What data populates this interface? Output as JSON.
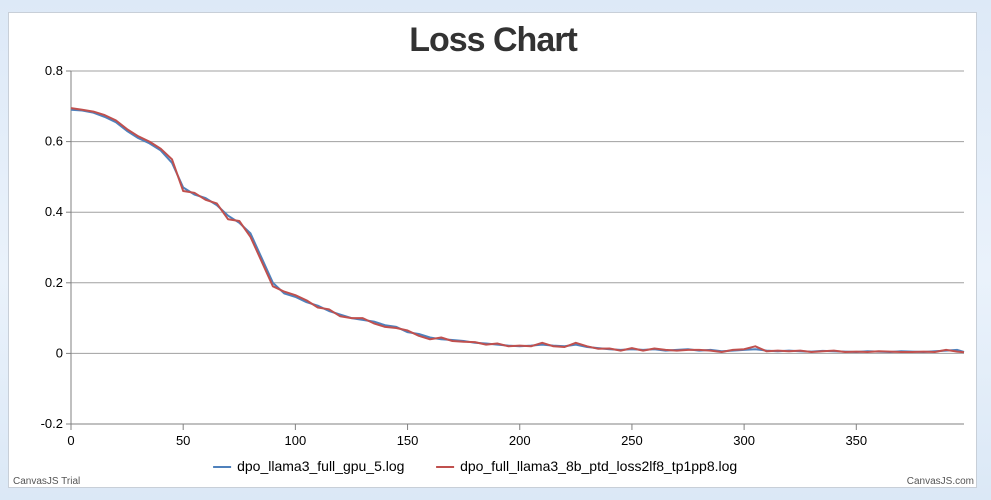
{
  "chart_data": {
    "type": "line",
    "title": "Loss Chart",
    "xlabel": "",
    "ylabel": "",
    "xlim": [
      0,
      398
    ],
    "ylim": [
      -0.2,
      0.8
    ],
    "x_ticks": [
      0,
      50,
      100,
      150,
      200,
      250,
      300,
      350
    ],
    "y_ticks": [
      -0.2,
      0,
      0.2,
      0.4,
      0.6,
      0.8
    ],
    "grid": "horizontal",
    "legend_position": "bottom",
    "series": [
      {
        "name": "dpo_llama3_full_gpu_5.log",
        "color": "#4f81bc",
        "x": [
          0,
          5,
          10,
          15,
          20,
          25,
          30,
          35,
          40,
          45,
          50,
          55,
          60,
          65,
          70,
          75,
          80,
          85,
          90,
          95,
          100,
          105,
          110,
          115,
          120,
          125,
          130,
          135,
          140,
          145,
          150,
          155,
          160,
          165,
          170,
          175,
          180,
          185,
          190,
          195,
          200,
          205,
          210,
          215,
          220,
          225,
          230,
          235,
          240,
          245,
          250,
          255,
          260,
          265,
          270,
          275,
          280,
          285,
          290,
          295,
          300,
          305,
          310,
          315,
          320,
          325,
          330,
          335,
          340,
          345,
          350,
          355,
          360,
          365,
          370,
          375,
          380,
          385,
          390,
          395,
          398
        ],
        "y": [
          0.69,
          0.688,
          0.682,
          0.67,
          0.655,
          0.63,
          0.61,
          0.595,
          0.575,
          0.54,
          0.47,
          0.45,
          0.44,
          0.42,
          0.39,
          0.37,
          0.34,
          0.27,
          0.2,
          0.17,
          0.16,
          0.145,
          0.135,
          0.12,
          0.11,
          0.1,
          0.095,
          0.09,
          0.08,
          0.075,
          0.06,
          0.055,
          0.045,
          0.04,
          0.038,
          0.035,
          0.03,
          0.028,
          0.025,
          0.022,
          0.02,
          0.022,
          0.025,
          0.022,
          0.02,
          0.025,
          0.018,
          0.015,
          0.012,
          0.01,
          0.012,
          0.01,
          0.012,
          0.008,
          0.01,
          0.012,
          0.008,
          0.01,
          0.006,
          0.008,
          0.01,
          0.012,
          0.008,
          0.006,
          0.008,
          0.006,
          0.005,
          0.007,
          0.006,
          0.005,
          0.004,
          0.006,
          0.005,
          0.004,
          0.006,
          0.005,
          0.004,
          0.006,
          0.008,
          0.01,
          0.004
        ]
      },
      {
        "name": "dpo_full_llama3_8b_ptd_loss2lf8_tp1pp8.log",
        "color": "#c0504e",
        "x": [
          0,
          5,
          10,
          15,
          20,
          25,
          30,
          35,
          40,
          45,
          50,
          55,
          60,
          65,
          70,
          75,
          80,
          85,
          90,
          95,
          100,
          105,
          110,
          115,
          120,
          125,
          130,
          135,
          140,
          145,
          150,
          155,
          160,
          165,
          170,
          175,
          180,
          185,
          190,
          195,
          200,
          205,
          210,
          215,
          220,
          225,
          230,
          235,
          240,
          245,
          250,
          255,
          260,
          265,
          270,
          275,
          280,
          285,
          290,
          295,
          300,
          305,
          310,
          315,
          320,
          325,
          330,
          335,
          340,
          345,
          350,
          355,
          360,
          365,
          370,
          375,
          380,
          385,
          390,
          395,
          398
        ],
        "y": [
          0.695,
          0.69,
          0.685,
          0.675,
          0.66,
          0.635,
          0.615,
          0.6,
          0.58,
          0.55,
          0.46,
          0.455,
          0.435,
          0.425,
          0.38,
          0.375,
          0.33,
          0.26,
          0.19,
          0.175,
          0.165,
          0.15,
          0.13,
          0.125,
          0.105,
          0.1,
          0.1,
          0.085,
          0.075,
          0.072,
          0.065,
          0.05,
          0.04,
          0.045,
          0.035,
          0.033,
          0.032,
          0.025,
          0.028,
          0.02,
          0.022,
          0.02,
          0.03,
          0.02,
          0.018,
          0.03,
          0.02,
          0.013,
          0.014,
          0.008,
          0.015,
          0.008,
          0.014,
          0.01,
          0.008,
          0.01,
          0.01,
          0.008,
          0.004,
          0.01,
          0.012,
          0.02,
          0.006,
          0.008,
          0.006,
          0.008,
          0.004,
          0.006,
          0.008,
          0.004,
          0.005,
          0.004,
          0.006,
          0.005,
          0.004,
          0.004,
          0.005,
          0.004,
          0.01,
          0.005,
          0.003
        ]
      }
    ],
    "credits": {
      "left": "CanvasJS Trial",
      "right": "CanvasJS.com"
    }
  }
}
